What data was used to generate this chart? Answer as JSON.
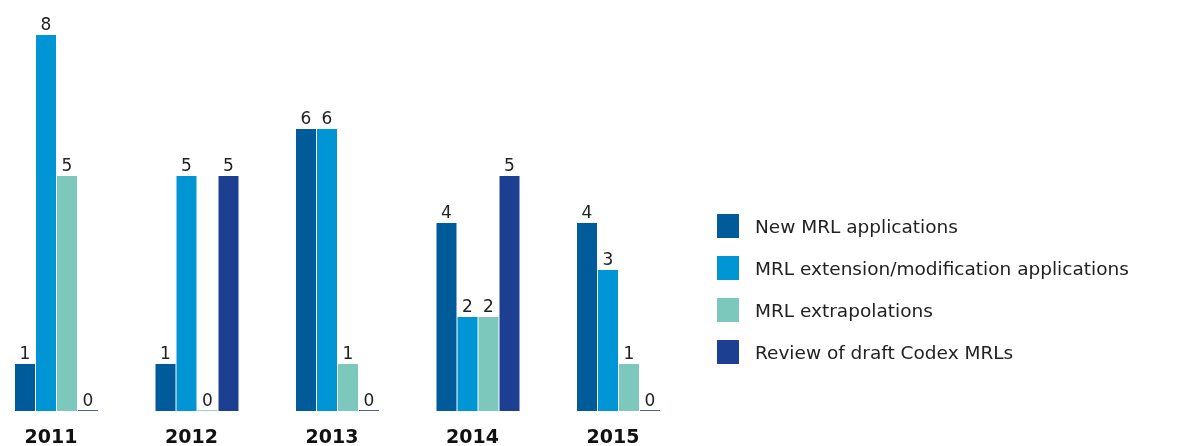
{
  "chart_data": {
    "type": "bar",
    "categories": [
      "2011",
      "2012",
      "2013",
      "2014",
      "2015"
    ],
    "series": [
      {
        "name": "New MRL applications",
        "color": "#005b9a",
        "values": [
          1,
          1,
          6,
          4,
          4
        ]
      },
      {
        "name": "MRL extension/modification applications",
        "color": "#0096d6",
        "values": [
          8,
          5,
          6,
          2,
          3
        ]
      },
      {
        "name": "MRL extrapolations",
        "color": "#7dc8bd",
        "values": [
          5,
          0,
          1,
          2,
          1
        ]
      },
      {
        "name": "Review of draft Codex MRLs",
        "color": "#1d3f91",
        "values": [
          0,
          5,
          0,
          5,
          0
        ]
      }
    ],
    "data_labels": true,
    "legend": "right"
  }
}
